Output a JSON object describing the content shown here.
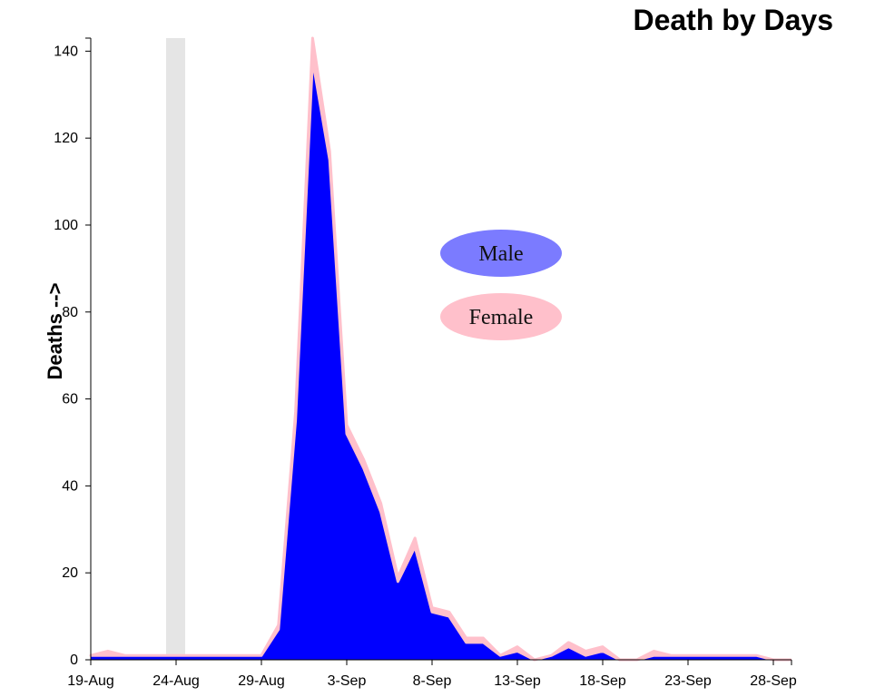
{
  "chart_data": {
    "type": "area",
    "title": "Death by Days",
    "xlabel": "",
    "ylabel": "Deaths -->",
    "x_start_label": "19-Aug",
    "x_tick_labels": [
      "19-Aug",
      "24-Aug",
      "29-Aug",
      "3-Sep",
      "8-Sep",
      "13-Sep",
      "18-Sep",
      "23-Sep",
      "28-Sep"
    ],
    "y_ticks": [
      0,
      20,
      40,
      60,
      80,
      100,
      120,
      140
    ],
    "ylim": [
      0,
      143
    ],
    "highlight_band": {
      "date": "24-Aug",
      "color": "#e5e5e5"
    },
    "series": [
      {
        "name": "Male",
        "color": "#0000ff",
        "x": [
          "19-Aug",
          "20-Aug",
          "21-Aug",
          "22-Aug",
          "23-Aug",
          "24-Aug",
          "25-Aug",
          "26-Aug",
          "27-Aug",
          "28-Aug",
          "29-Aug",
          "30-Aug",
          "31-Aug",
          "1-Sep",
          "2-Sep",
          "3-Sep",
          "4-Sep",
          "5-Sep",
          "6-Sep",
          "7-Sep",
          "8-Sep",
          "9-Sep",
          "10-Sep",
          "11-Sep",
          "12-Sep",
          "13-Sep",
          "14-Sep",
          "15-Sep",
          "16-Sep",
          "17-Sep",
          "18-Sep",
          "19-Sep",
          "20-Sep",
          "21-Sep",
          "22-Sep",
          "23-Sep",
          "24-Sep",
          "25-Sep",
          "26-Sep",
          "27-Sep",
          "28-Sep",
          "29-Sep"
        ],
        "values": [
          1,
          1,
          1,
          1,
          1,
          1,
          1,
          1,
          1,
          1,
          1,
          7,
          55,
          138,
          115,
          52,
          44,
          34,
          18,
          26,
          11,
          10,
          4,
          4,
          1,
          2,
          0,
          1,
          3,
          1,
          2,
          0,
          0,
          1,
          1,
          1,
          1,
          1,
          1,
          1,
          0,
          0
        ]
      },
      {
        "name": "Female",
        "color": "#ffc0cb",
        "x": [
          "19-Aug",
          "20-Aug",
          "21-Aug",
          "22-Aug",
          "23-Aug",
          "24-Aug",
          "25-Aug",
          "26-Aug",
          "27-Aug",
          "28-Aug",
          "29-Aug",
          "30-Aug",
          "31-Aug",
          "1-Sep",
          "2-Sep",
          "3-Sep",
          "4-Sep",
          "5-Sep",
          "6-Sep",
          "7-Sep",
          "8-Sep",
          "9-Sep",
          "10-Sep",
          "11-Sep",
          "12-Sep",
          "13-Sep",
          "14-Sep",
          "15-Sep",
          "16-Sep",
          "17-Sep",
          "18-Sep",
          "19-Sep",
          "20-Sep",
          "21-Sep",
          "22-Sep",
          "23-Sep",
          "24-Sep",
          "25-Sep",
          "26-Sep",
          "27-Sep",
          "28-Sep",
          "29-Sep"
        ],
        "values": [
          0,
          1,
          0,
          0,
          0,
          0,
          0,
          0,
          0,
          0,
          0,
          1,
          2,
          5,
          2,
          2,
          2,
          2,
          1,
          2,
          1,
          1,
          1,
          1,
          0,
          1,
          0,
          0,
          1,
          1,
          1,
          0,
          0,
          1,
          0,
          0,
          0,
          0,
          0,
          0,
          0,
          0
        ]
      }
    ],
    "legend": {
      "placement": "center-right",
      "items": [
        {
          "label": "Male",
          "color": "#7b7bff"
        },
        {
          "label": "Female",
          "color": "#ffc0cb"
        }
      ]
    }
  }
}
